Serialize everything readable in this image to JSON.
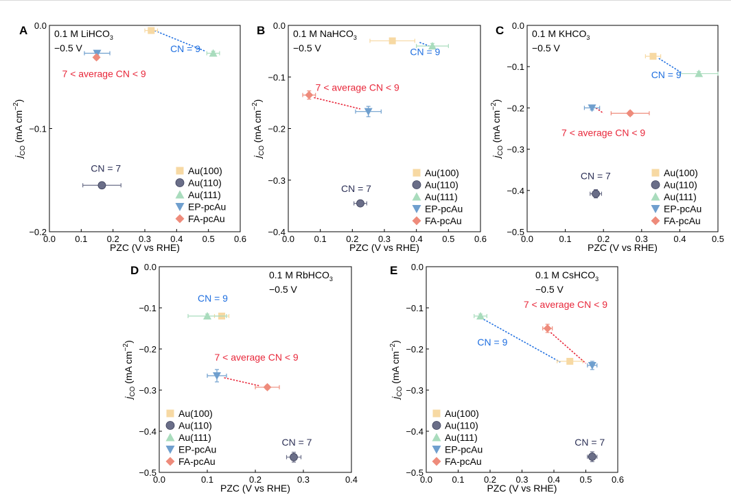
{
  "colors": {
    "Au(100)": "#f7d9a3",
    "Au(110)": "#6a6e88",
    "Au(111)": "#a9dcbd",
    "EP-pcAu": "#6f9fce",
    "FA-pcAu": "#ee8b7b",
    "cn9": "#1f6fe0",
    "cn7": "#2b2f55",
    "cnmid": "#e8273a"
  },
  "common": {
    "xlabel": "PZC (V vs RHE)",
    "ylabel_j": "j",
    "ylabel_sub": "CO",
    "ylabel_unit": "(mA cm",
    "ylabel_exp": "−2",
    "ylabel_close": ")",
    "potential": "−0.5 V",
    "legend": [
      "Au(100)",
      "Au(110)",
      "Au(111)",
      "EP-pcAu",
      "FA-pcAu"
    ]
  },
  "chart_data": [
    {
      "panel": "A",
      "type": "scatter",
      "electrolyte": "0.1 M LiHCO",
      "electrolyte_sub": "3",
      "xlim": [
        0,
        0.6
      ],
      "ylim": [
        -0.2,
        0
      ],
      "xticks": [
        0.0,
        0.1,
        0.2,
        0.3,
        0.4,
        0.5,
        0.6
      ],
      "yticks": [
        0.0,
        -0.1,
        -0.2
      ],
      "points": [
        {
          "series": "Au(100)",
          "x": 0.32,
          "y": -0.005,
          "xerr": 0.02,
          "yerr": 0
        },
        {
          "series": "Au(110)",
          "x": 0.165,
          "y": -0.155,
          "xerr": 0.06,
          "yerr": 0.002
        },
        {
          "series": "Au(111)",
          "x": 0.515,
          "y": -0.027,
          "xerr": 0.02,
          "yerr": 0.002
        },
        {
          "series": "EP-pcAu",
          "x": 0.15,
          "y": -0.027,
          "xerr": 0.04,
          "yerr": 0.002
        },
        {
          "series": "FA-pcAu",
          "x": 0.148,
          "y": -0.031,
          "xerr": 0.005,
          "yerr": 0.002
        }
      ],
      "links": [
        {
          "from": [
            0.33,
            -0.005
          ],
          "to": [
            0.49,
            -0.025
          ],
          "color": "cn9"
        }
      ],
      "labels": [
        {
          "text": "CN = 9",
          "x": 0.38,
          "y": -0.026,
          "color": "cn9"
        },
        {
          "text": "7 < average CN < 9",
          "x": 0.04,
          "y": -0.05,
          "color": "cnmid"
        },
        {
          "text": "CN = 7",
          "x": 0.13,
          "y": -0.142,
          "color": "cn7"
        }
      ],
      "legend_pos": "bottom-right"
    },
    {
      "panel": "B",
      "type": "scatter",
      "electrolyte": "0.1 M NaHCO",
      "electrolyte_sub": "3",
      "xlim": [
        0,
        0.6
      ],
      "ylim": [
        -0.4,
        0
      ],
      "xticks": [
        0.0,
        0.1,
        0.2,
        0.3,
        0.4,
        0.5,
        0.6
      ],
      "yticks": [
        0.0,
        -0.1,
        -0.2,
        -0.3,
        -0.4
      ],
      "points": [
        {
          "series": "Au(100)",
          "x": 0.325,
          "y": -0.03,
          "xerr": 0.07,
          "yerr": 0
        },
        {
          "series": "Au(110)",
          "x": 0.225,
          "y": -0.345,
          "xerr": 0.02,
          "yerr": 0.005
        },
        {
          "series": "Au(111)",
          "x": 0.45,
          "y": -0.04,
          "xerr": 0.05,
          "yerr": 0.005
        },
        {
          "series": "EP-pcAu",
          "x": 0.25,
          "y": -0.167,
          "xerr": 0.04,
          "yerr": 0.01
        },
        {
          "series": "FA-pcAu",
          "x": 0.065,
          "y": -0.135,
          "xerr": 0.02,
          "yerr": 0.008
        }
      ],
      "links": [
        {
          "from": [
            0.41,
            -0.033
          ],
          "to": [
            0.44,
            -0.04
          ],
          "color": "cn9"
        },
        {
          "from": [
            0.08,
            -0.14
          ],
          "to": [
            0.225,
            -0.162
          ],
          "color": "cnmid"
        }
      ],
      "labels": [
        {
          "text": "CN = 9",
          "x": 0.38,
          "y": -0.058,
          "color": "cn9"
        },
        {
          "text": "7 < average CN < 9",
          "x": 0.085,
          "y": -0.127,
          "color": "cnmid"
        },
        {
          "text": "CN = 7",
          "x": 0.165,
          "y": -0.323,
          "color": "cn7"
        }
      ],
      "legend_pos": "bottom-right"
    },
    {
      "panel": "C",
      "type": "scatter",
      "electrolyte": "0.1 M KHCO",
      "electrolyte_sub": "3",
      "xlim": [
        0,
        0.5
      ],
      "ylim": [
        -0.5,
        0
      ],
      "xticks": [
        0.0,
        0.1,
        0.2,
        0.3,
        0.4,
        0.5
      ],
      "yticks": [
        0.0,
        -0.1,
        -0.2,
        -0.3,
        -0.4,
        -0.5
      ],
      "points": [
        {
          "series": "Au(100)",
          "x": 0.33,
          "y": -0.075,
          "xerr": 0.02,
          "yerr": 0.005
        },
        {
          "series": "Au(110)",
          "x": 0.18,
          "y": -0.408,
          "xerr": 0.015,
          "yerr": 0.01
        },
        {
          "series": "Au(111)",
          "x": 0.45,
          "y": -0.117,
          "xerr": 0.05,
          "yerr": 0.005
        },
        {
          "series": "EP-pcAu",
          "x": 0.17,
          "y": -0.2,
          "xerr": 0.02,
          "yerr": 0.005
        },
        {
          "series": "FA-pcAu",
          "x": 0.27,
          "y": -0.213,
          "xerr": 0.05,
          "yerr": 0.005
        }
      ],
      "links": [
        {
          "from": [
            0.345,
            -0.08
          ],
          "to": [
            0.405,
            -0.115
          ],
          "color": "cn9"
        },
        {
          "from": [
            0.18,
            -0.2
          ],
          "to": [
            0.2,
            -0.213
          ],
          "color": "cnmid"
        }
      ],
      "labels": [
        {
          "text": "CN = 9",
          "x": 0.325,
          "y": -0.128,
          "color": "cn9"
        },
        {
          "text": "7 < average CN < 9",
          "x": 0.09,
          "y": -0.268,
          "color": "cnmid"
        },
        {
          "text": "CN = 7",
          "x": 0.14,
          "y": -0.373,
          "color": "cn7"
        }
      ],
      "legend_pos": "bottom-right"
    },
    {
      "panel": "D",
      "type": "scatter",
      "electrolyte": "0.1 M RbHCO",
      "electrolyte_sub": "3",
      "xlim": [
        0,
        0.4
      ],
      "ylim": [
        -0.5,
        0
      ],
      "xticks": [
        0.0,
        0.1,
        0.2,
        0.3,
        0.4
      ],
      "yticks": [
        0.0,
        -0.1,
        -0.2,
        -0.3,
        -0.4,
        -0.5
      ],
      "points": [
        {
          "series": "Au(100)",
          "x": 0.13,
          "y": -0.12,
          "xerr": 0.015,
          "yerr": 0.005
        },
        {
          "series": "Au(110)",
          "x": 0.28,
          "y": -0.463,
          "xerr": 0.015,
          "yerr": 0.012
        },
        {
          "series": "Au(111)",
          "x": 0.1,
          "y": -0.12,
          "xerr": 0.04,
          "yerr": 0.005
        },
        {
          "series": "EP-pcAu",
          "x": 0.12,
          "y": -0.265,
          "xerr": 0.02,
          "yerr": 0.015
        },
        {
          "series": "FA-pcAu",
          "x": 0.225,
          "y": -0.293,
          "xerr": 0.025,
          "yerr": 0.005
        }
      ],
      "links": [
        {
          "from": [
            0.135,
            -0.27
          ],
          "to": [
            0.21,
            -0.29
          ],
          "color": "cnmid"
        }
      ],
      "labels": [
        {
          "text": "CN = 9",
          "x": 0.08,
          "y": -0.085,
          "color": "cn9"
        },
        {
          "text": "7 < average CN < 9",
          "x": 0.115,
          "y": -0.228,
          "color": "cnmid"
        },
        {
          "text": "CN = 7",
          "x": 0.255,
          "y": -0.435,
          "color": "cn7"
        }
      ],
      "legend_pos": "bottom-left"
    },
    {
      "panel": "E",
      "type": "scatter",
      "electrolyte": "0.1 M CsHCO",
      "electrolyte_sub": "3",
      "xlim": [
        0,
        0.6
      ],
      "ylim": [
        -0.5,
        0
      ],
      "xticks": [
        0.0,
        0.1,
        0.2,
        0.3,
        0.4,
        0.5,
        0.6
      ],
      "yticks": [
        0.0,
        -0.1,
        -0.2,
        -0.3,
        -0.4,
        -0.5
      ],
      "points": [
        {
          "series": "Au(100)",
          "x": 0.45,
          "y": -0.23,
          "xerr": 0.04,
          "yerr": 0.005
        },
        {
          "series": "Au(110)",
          "x": 0.52,
          "y": -0.462,
          "xerr": 0.015,
          "yerr": 0.012
        },
        {
          "series": "Au(111)",
          "x": 0.17,
          "y": -0.12,
          "xerr": 0.02,
          "yerr": 0.005
        },
        {
          "series": "EP-pcAu",
          "x": 0.52,
          "y": -0.24,
          "xerr": 0.015,
          "yerr": 0.01
        },
        {
          "series": "FA-pcAu",
          "x": 0.38,
          "y": -0.15,
          "xerr": 0.015,
          "yerr": 0.01
        }
      ],
      "links": [
        {
          "from": [
            0.18,
            -0.128
          ],
          "to": [
            0.42,
            -0.232
          ],
          "color": "cn9"
        },
        {
          "from": [
            0.39,
            -0.16
          ],
          "to": [
            0.5,
            -0.235
          ],
          "color": "cnmid"
        }
      ],
      "labels": [
        {
          "text": "CN = 9",
          "x": 0.16,
          "y": -0.192,
          "color": "cn9"
        },
        {
          "text": "7 < average CN < 9",
          "x": 0.305,
          "y": -0.1,
          "color": "cnmid"
        },
        {
          "text": "CN = 7",
          "x": 0.465,
          "y": -0.435,
          "color": "cn7"
        }
      ],
      "legend_pos": "bottom-left"
    }
  ]
}
